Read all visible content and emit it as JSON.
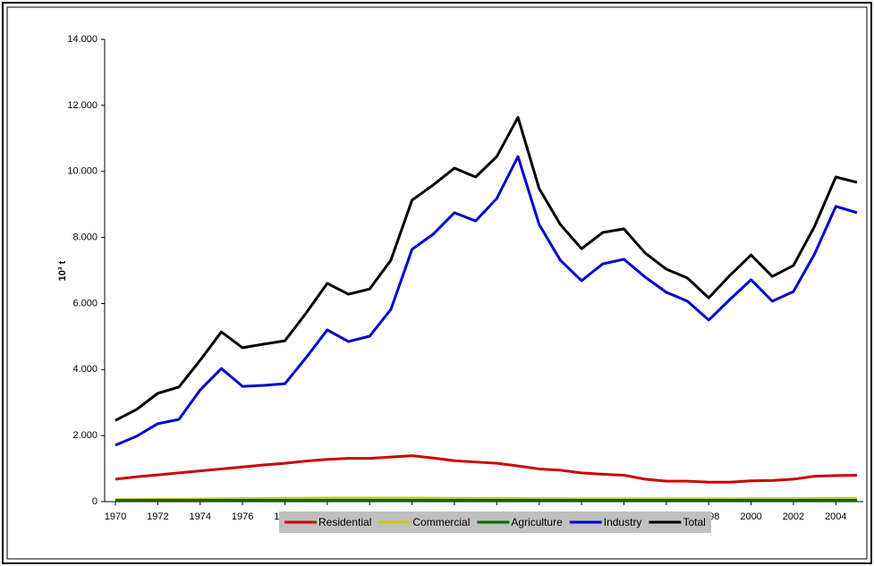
{
  "chart_data": {
    "type": "line",
    "y_label": "10³ t",
    "x": [
      1970,
      1971,
      1972,
      1973,
      1974,
      1975,
      1976,
      1977,
      1978,
      1979,
      1980,
      1981,
      1982,
      1983,
      1984,
      1985,
      1986,
      1987,
      1988,
      1989,
      1990,
      1991,
      1992,
      1993,
      1994,
      1995,
      1996,
      1997,
      1998,
      1999,
      2000,
      2001,
      2002,
      2003,
      2004,
      2005
    ],
    "xlim": [
      1970,
      2005
    ],
    "xticks": [
      1970,
      1972,
      1974,
      1976,
      1978,
      1980,
      1982,
      1984,
      1986,
      1988,
      1990,
      1992,
      1994,
      1996,
      1998,
      2000,
      2002,
      2004
    ],
    "ylim": [
      0,
      14000
    ],
    "yticks": [
      0,
      {
        "value": 2000,
        "label": "2.000"
      },
      {
        "value": 4000,
        "label": "4.000"
      },
      {
        "value": 6000,
        "label": "6.000"
      },
      {
        "value": 8000,
        "label": "8.000"
      },
      {
        "value": 10000,
        "label": "10.000"
      },
      {
        "value": 12000,
        "label": "12.000"
      },
      {
        "value": 14000,
        "label": "14.000"
      }
    ],
    "legend": "bottom",
    "series": [
      {
        "name": "Residential",
        "color": "#cc0000",
        "values": [
          680,
          750,
          810,
          870,
          930,
          990,
          1050,
          1110,
          1160,
          1230,
          1280,
          1310,
          1310,
          1350,
          1390,
          1320,
          1240,
          1200,
          1160,
          1080,
          990,
          950,
          870,
          830,
          800,
          680,
          620,
          620,
          590,
          590,
          630,
          640,
          680,
          770,
          790,
          800
        ]
      },
      {
        "name": "Commercial",
        "color": "#cccc00",
        "values": [
          60,
          65,
          70,
          75,
          80,
          85,
          90,
          95,
          100,
          105,
          110,
          110,
          110,
          110,
          110,
          105,
          100,
          100,
          95,
          95,
          90,
          90,
          85,
          85,
          85,
          85,
          85,
          85,
          85,
          85,
          90,
          90,
          90,
          95,
          100,
          100
        ]
      },
      {
        "name": "Agriculture",
        "color": "#006600",
        "values": [
          40,
          40,
          40,
          40,
          40,
          40,
          40,
          40,
          40,
          40,
          40,
          40,
          40,
          40,
          40,
          40,
          40,
          40,
          40,
          40,
          40,
          40,
          40,
          40,
          40,
          40,
          40,
          40,
          40,
          40,
          40,
          40,
          40,
          40,
          40,
          40
        ]
      },
      {
        "name": "Industry",
        "color": "#0000cc",
        "values": [
          1710,
          1980,
          2360,
          2490,
          3380,
          4030,
          3490,
          3520,
          3570,
          4360,
          5200,
          4850,
          5010,
          5820,
          7640,
          8100,
          8750,
          8500,
          9180,
          10450,
          8390,
          7310,
          6690,
          7200,
          7340,
          6800,
          6340,
          6070,
          5500,
          6120,
          6720,
          6070,
          6360,
          7500,
          8940,
          8750
        ]
      },
      {
        "name": "Total",
        "color": "#000000",
        "values": [
          2460,
          2790,
          3280,
          3470,
          4280,
          5140,
          4660,
          4770,
          4870,
          5710,
          6610,
          6280,
          6440,
          7310,
          9130,
          9590,
          10100,
          9830,
          10450,
          11640,
          9480,
          8390,
          7660,
          8150,
          8260,
          7530,
          7040,
          6770,
          6170,
          6850,
          7470,
          6820,
          7150,
          8340,
          9830,
          9670
        ]
      }
    ]
  }
}
